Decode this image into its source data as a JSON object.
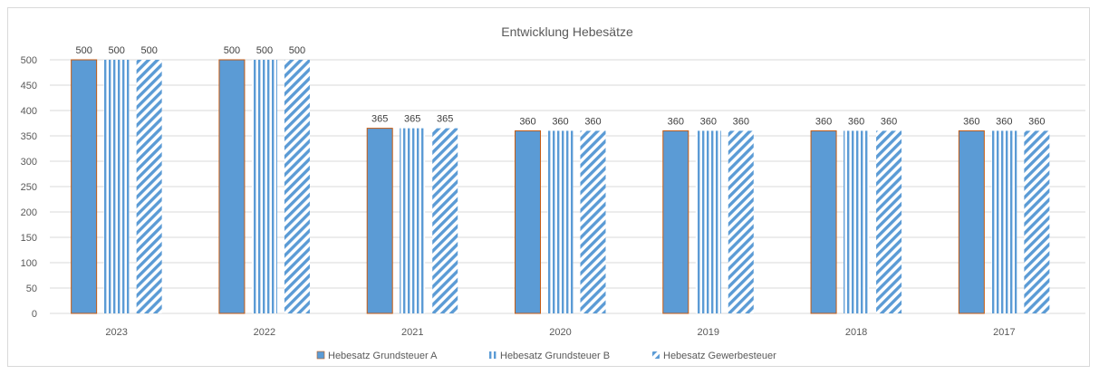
{
  "chart_data": {
    "type": "bar",
    "title": "Entwicklung Hebesätze",
    "xlabel": "",
    "ylabel": "",
    "categories": [
      "2023",
      "2022",
      "2021",
      "2020",
      "2019",
      "2018",
      "2017"
    ],
    "series": [
      {
        "name": "Hebesatz Grundsteuer A",
        "values": [
          500,
          500,
          365,
          360,
          360,
          360,
          360
        ],
        "pattern": "solid",
        "color": "#5b9bd5"
      },
      {
        "name": "Hebesatz Grundsteuer B",
        "values": [
          500,
          500,
          365,
          360,
          360,
          360,
          360
        ],
        "pattern": "vertical-stripes",
        "color": "#5b9bd5"
      },
      {
        "name": "Hebesatz Gewerbesteuer",
        "values": [
          500,
          500,
          365,
          360,
          360,
          360,
          360
        ],
        "pattern": "diagonal-stripes",
        "color": "#5b9bd5"
      }
    ],
    "ylim": [
      0,
      500
    ],
    "yticks": [
      0,
      50,
      100,
      150,
      200,
      250,
      300,
      350,
      400,
      450,
      500
    ],
    "grid": true,
    "data_labels": true,
    "legend_position": "bottom",
    "colors": {
      "bar": "#5b9bd5",
      "bar_outline": "#c55a11",
      "grid": "#d9d9d9",
      "text": "#595959"
    }
  }
}
